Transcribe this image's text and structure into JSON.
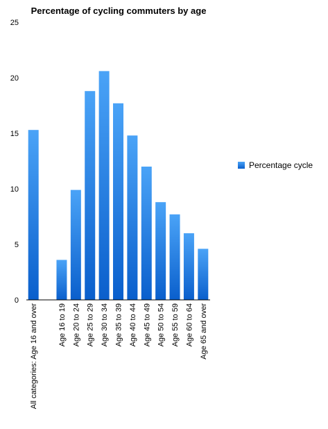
{
  "chart_data": {
    "type": "bar",
    "title": "Percentage of cycling commuters by age",
    "xlabel": "",
    "ylabel": "",
    "categories": [
      "All categories: Age 16 and over",
      "",
      "Age 16 to 19",
      "Age 20 to 24",
      "Age 25 to 29",
      "Age 30 to 34",
      "Age 35 to 39",
      "Age 40 to 44",
      "Age 45 to 49",
      "Age 50 to 54",
      "Age 55 to 59",
      "Age 60 to 64",
      "Age 65 and over"
    ],
    "series": [
      {
        "name": "Percentage cycle",
        "values": [
          15.3,
          null,
          3.6,
          9.9,
          18.8,
          20.6,
          17.7,
          14.8,
          12.0,
          8.8,
          7.7,
          6.0,
          4.6
        ]
      }
    ],
    "ylim": [
      0,
      25
    ],
    "yticks": [
      0,
      5,
      10,
      15,
      20,
      25
    ],
    "grid": false,
    "legend_position": "right",
    "colors": {
      "bar_top": "#4aa3f7",
      "bar_bottom": "#0a5fcc",
      "axis": "#000000",
      "text": "#000000"
    }
  }
}
